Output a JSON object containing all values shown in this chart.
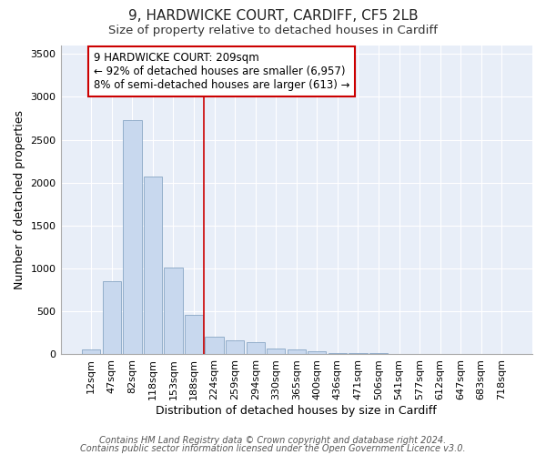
{
  "title_line1": "9, HARDWICKE COURT, CARDIFF, CF5 2LB",
  "title_line2": "Size of property relative to detached houses in Cardiff",
  "xlabel": "Distribution of detached houses by size in Cardiff",
  "ylabel": "Number of detached properties",
  "categories": [
    "12sqm",
    "47sqm",
    "82sqm",
    "118sqm",
    "153sqm",
    "188sqm",
    "224sqm",
    "259sqm",
    "294sqm",
    "330sqm",
    "365sqm",
    "400sqm",
    "436sqm",
    "471sqm",
    "506sqm",
    "541sqm",
    "577sqm",
    "612sqm",
    "647sqm",
    "683sqm",
    "718sqm"
  ],
  "values": [
    50,
    850,
    2730,
    2070,
    1010,
    460,
    200,
    155,
    140,
    60,
    50,
    30,
    15,
    10,
    5,
    3,
    2,
    1,
    1,
    1,
    0
  ],
  "bar_color": "#c8d8ee",
  "bar_edge_color": "#7799bb",
  "property_line_x": 6.0,
  "annotation_text": "9 HARDWICKE COURT: 209sqm\n← 92% of detached houses are smaller (6,957)\n8% of semi-detached houses are larger (613) →",
  "annotation_box_color": "#ffffff",
  "annotation_box_edge_color": "#cc0000",
  "vertical_line_color": "#cc0000",
  "ylim": [
    0,
    3600
  ],
  "yticks": [
    0,
    500,
    1000,
    1500,
    2000,
    2500,
    3000,
    3500
  ],
  "footnote1": "Contains HM Land Registry data © Crown copyright and database right 2024.",
  "footnote2": "Contains public sector information licensed under the Open Government Licence v3.0.",
  "plot_bg_color": "#e8eef8",
  "fig_bg_color": "#ffffff",
  "grid_color": "#ffffff",
  "title_fontsize": 11,
  "subtitle_fontsize": 9.5,
  "axis_label_fontsize": 9,
  "tick_fontsize": 8,
  "annotation_fontsize": 8.5,
  "footnote_fontsize": 7
}
